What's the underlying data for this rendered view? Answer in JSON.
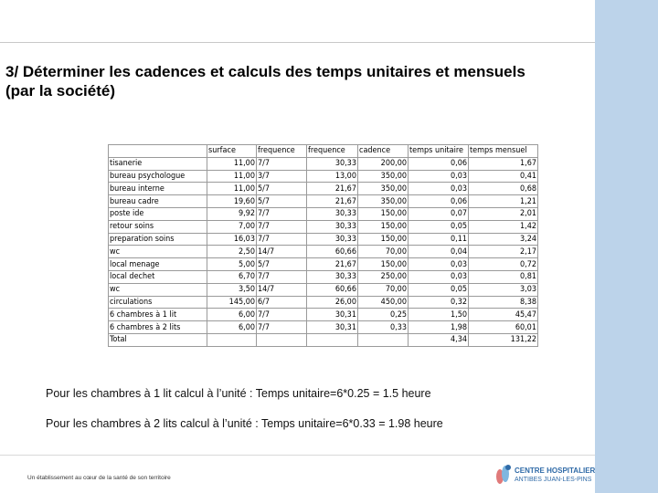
{
  "title": "3/ Déterminer les cadences et calculs des temps unitaires et mensuels (par la société)",
  "table": {
    "headers": [
      "",
      "surface",
      "frequence",
      "frequence",
      "cadence",
      "temps unitaire",
      "temps mensuel"
    ],
    "rows": [
      [
        "tisanerie",
        "11,00",
        "7/7",
        "30,33",
        "200,00",
        "0,06",
        "1,67"
      ],
      [
        "bureau psychologue",
        "11,00",
        "3/7",
        "13,00",
        "350,00",
        "0,03",
        "0,41"
      ],
      [
        "bureau interne",
        "11,00",
        "5/7",
        "21,67",
        "350,00",
        "0,03",
        "0,68"
      ],
      [
        "bureau cadre",
        "19,60",
        "5/7",
        "21,67",
        "350,00",
        "0,06",
        "1,21"
      ],
      [
        "poste ide",
        "9,92",
        "7/7",
        "30,33",
        "150,00",
        "0,07",
        "2,01"
      ],
      [
        "retour soins",
        "7,00",
        "7/7",
        "30,33",
        "150,00",
        "0,05",
        "1,42"
      ],
      [
        "preparation soins",
        "16,03",
        "7/7",
        "30,33",
        "150,00",
        "0,11",
        "3,24"
      ],
      [
        "wc",
        "2,50",
        "14/7",
        "60,66",
        "70,00",
        "0,04",
        "2,17"
      ],
      [
        "local menage",
        "5,00",
        "5/7",
        "21,67",
        "150,00",
        "0,03",
        "0,72"
      ],
      [
        "local dechet",
        "6,70",
        "7/7",
        "30,33",
        "250,00",
        "0,03",
        "0,81"
      ],
      [
        "wc",
        "3,50",
        "14/7",
        "60,66",
        "70,00",
        "0,05",
        "3,03"
      ],
      [
        "circulations",
        "145,00",
        "6/7",
        "26,00",
        "450,00",
        "0,32",
        "8,38"
      ],
      [
        "6 chambres à 1 lit",
        "6,00",
        "7/7",
        "30,31",
        "0,25",
        "1,50",
        "45,47"
      ],
      [
        "6 chambres à 2 lits",
        "6,00",
        "7/7",
        "30,31",
        "0,33",
        "1,98",
        "60,01"
      ],
      [
        "Total",
        "",
        "",
        "",
        "",
        "4,34",
        "131,22"
      ]
    ]
  },
  "note1": "Pour les chambres à 1 lit calcul à l’unité : Temps unitaire=6*0.25 = 1.5 heure",
  "note2": "Pour les chambres à 2 lits calcul à l’unité : Temps unitaire=6*0.33 = 1.98 heure",
  "footer": "Un établissement au cœur de la santé de son territoire",
  "logo": {
    "name": "CENTRE HOSPITALIER",
    "sub": "ANTIBES JUAN-LES-PINS"
  }
}
